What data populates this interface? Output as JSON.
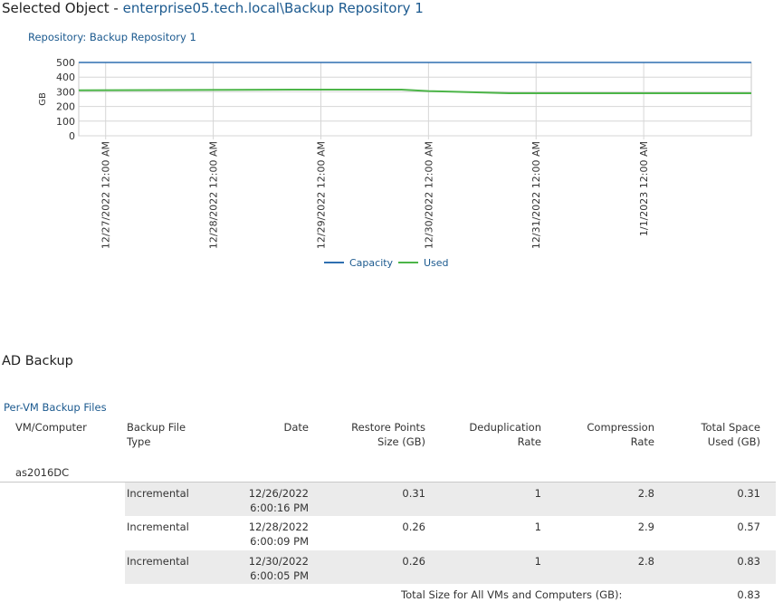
{
  "header": {
    "label": "Selected Object - ",
    "object_path": "enterprise05.tech.local\\Backup Repository 1"
  },
  "repository_title": "Repository: Backup Repository 1",
  "colors": {
    "accent": "#1c5a8f",
    "capacity": "#2f6fb0",
    "used": "#4cb548",
    "row_band": "#ebebeb"
  },
  "chart_data": {
    "type": "line",
    "ylabel": "GB",
    "ylim": [
      0,
      500
    ],
    "yticks": [
      0,
      100,
      200,
      300,
      400,
      500
    ],
    "xticks": [
      "12/27/2022 12:00 AM",
      "12/28/2022 12:00 AM",
      "12/29/2022 12:00 AM",
      "12/30/2022 12:00 AM",
      "12/31/2022 12:00 AM",
      "1/1/2023 12:00 AM"
    ],
    "xlim": [
      "12/26/2022 6:00 PM",
      "1/2/2023 12:00 AM"
    ],
    "legend_position": "bottom",
    "grid": true,
    "series": [
      {
        "name": "Capacity",
        "points": [
          [
            "12/26/2022 6:00 PM",
            500
          ],
          [
            "1/2/2023 12:00 AM",
            500
          ]
        ]
      },
      {
        "name": "Used",
        "points": [
          [
            "12/26/2022 6:00 PM",
            310
          ],
          [
            "12/28/2022 6:00 PM",
            315
          ],
          [
            "12/29/2022 6:00 PM",
            315
          ],
          [
            "12/30/2022 12:00 AM",
            305
          ],
          [
            "12/30/2022 6:00 PM",
            290
          ],
          [
            "12/31/2022 6:00 PM",
            290
          ],
          [
            "1/2/2023 12:00 AM",
            290
          ]
        ]
      }
    ]
  },
  "section_title": "AD Backup",
  "table": {
    "title": "Per-VM Backup Files",
    "headers": {
      "vm": "VM/Computer",
      "type_1": "Backup File",
      "type_2": "Type",
      "date": "Date",
      "restore_1": "Restore Points",
      "restore_2": "Size (GB)",
      "dedup_1": "Deduplication",
      "dedup_2": "Rate",
      "comp_1": "Compression",
      "comp_2": "Rate",
      "total_1": "Total Space",
      "total_2": "Used (GB)"
    },
    "vm_name": "as2016DC",
    "rows": [
      {
        "type": "Incremental",
        "date_1": "12/26/2022",
        "date_2": "6:00:16 PM",
        "restore": "0.31",
        "dedup": "1",
        "comp": "2.8",
        "total": "0.31"
      },
      {
        "type": "Incremental",
        "date_1": "12/28/2022",
        "date_2": "6:00:09 PM",
        "restore": "0.26",
        "dedup": "1",
        "comp": "2.9",
        "total": "0.57"
      },
      {
        "type": "Incremental",
        "date_1": "12/30/2022",
        "date_2": "6:00:05 PM",
        "restore": "0.26",
        "dedup": "1",
        "comp": "2.8",
        "total": "0.83"
      }
    ],
    "total_label": "Total Size for All VMs and Computers (GB):",
    "total_value": "0.83"
  }
}
